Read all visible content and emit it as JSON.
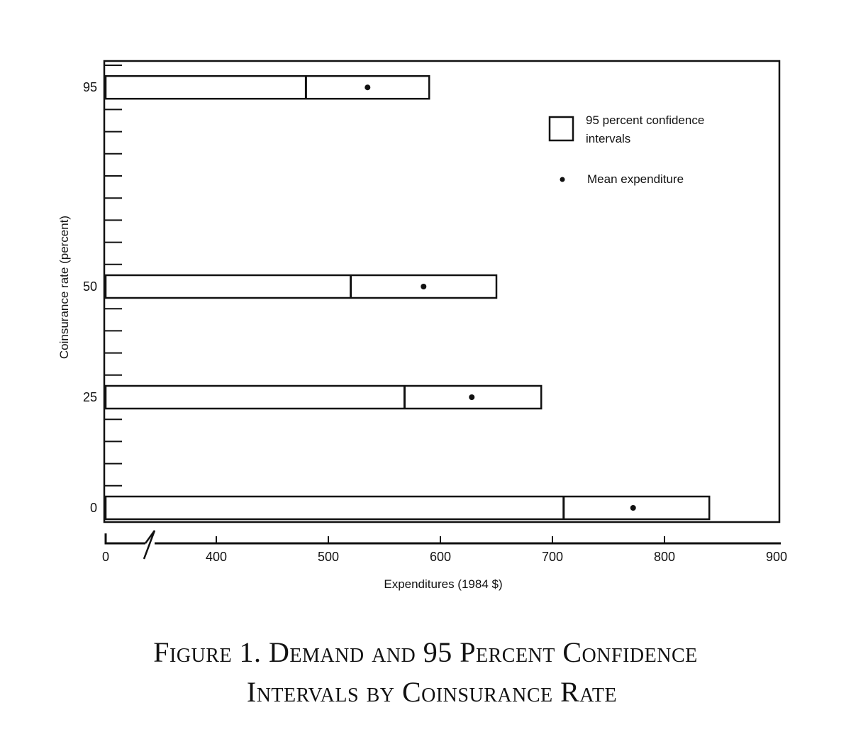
{
  "chart_data": {
    "type": "interval-bar",
    "xlabel": "Expenditures (1984 $)",
    "ylabel": "Coinsurance rate (percent)",
    "x_ticks": [
      0,
      400,
      500,
      600,
      700,
      800,
      900
    ],
    "x_axis_break": "between 0 and 400",
    "y_ticks": [
      0,
      25,
      50,
      95
    ],
    "xlim": [
      300,
      900
    ],
    "ylim": [
      -5,
      100
    ],
    "categories": [
      95,
      50,
      25,
      0
    ],
    "mean": [
      535,
      585,
      628,
      772
    ],
    "ci_lower": [
      480,
      520,
      568,
      710
    ],
    "ci_upper": [
      590,
      650,
      690,
      840
    ],
    "legend": [
      {
        "symbol": "box",
        "label_line1": "95 percent confidence",
        "label_line2": "intervals"
      },
      {
        "symbol": "dot",
        "label": "Mean expenditure"
      }
    ],
    "grid": false
  },
  "caption": {
    "line1": "Figure 1.  Demand and 95 Percent  Confidence",
    "line2": "Intervals by Coinsurance Rate"
  }
}
